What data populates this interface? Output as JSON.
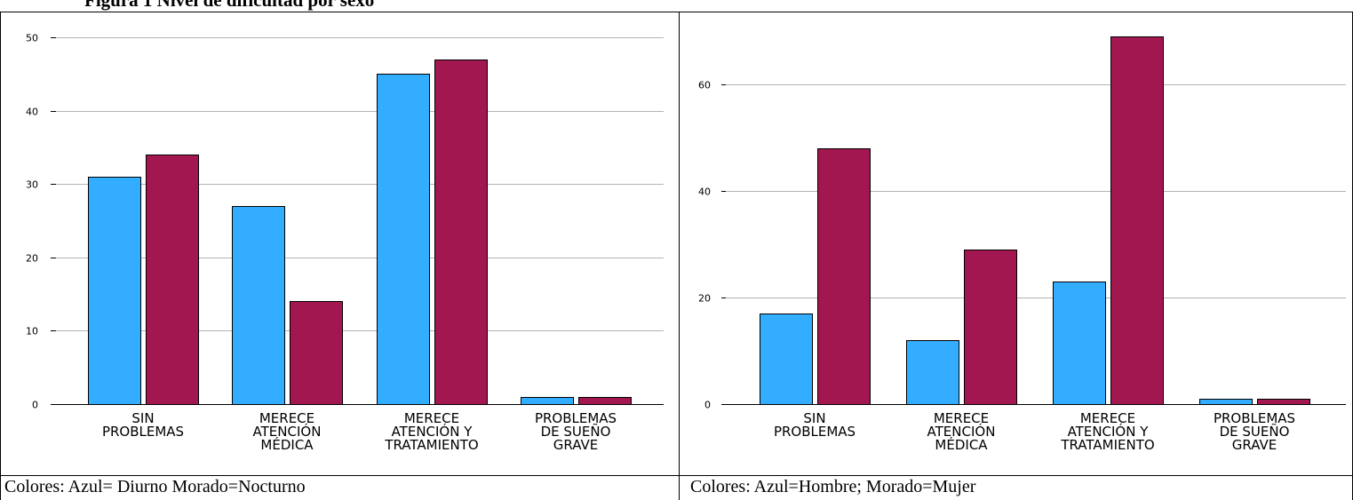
{
  "figure_title": "Figura 1 Nivel de dificultad por sexo",
  "colors": {
    "series_1": "#33adff",
    "series_2": "#a2174f"
  },
  "chart_data": [
    {
      "type": "bar",
      "categories": [
        [
          "SIN",
          "PROBLEMAS"
        ],
        [
          "MERECE",
          "ATENCIÓN",
          "MÉDICA"
        ],
        [
          "MERECE",
          "ATENCIÓN Y",
          "TRATAMIENTO"
        ],
        [
          "PROBLEMAS",
          "DE SUEÑO",
          "GRAVE"
        ]
      ],
      "series": [
        {
          "values": [
            31,
            27,
            45,
            1
          ]
        },
        {
          "values": [
            34,
            14,
            47,
            1
          ]
        }
      ],
      "ylim": [
        0,
        50
      ],
      "yticks": [
        0,
        10,
        20,
        30,
        40,
        50
      ],
      "grid": true,
      "caption": "Colores: Azul= Diurno Morado=Nocturno"
    },
    {
      "type": "bar",
      "categories": [
        [
          "SIN",
          "PROBLEMAS"
        ],
        [
          "MERECE",
          "ATENCIÓN",
          "MÉDICA"
        ],
        [
          "MERECE",
          "ATENCIÓN Y",
          "TRATAMIENTO"
        ],
        [
          "PROBLEMAS",
          "DE SUEÑO",
          "GRAVE"
        ]
      ],
      "series": [
        {
          "values": [
            17,
            12,
            23,
            1
          ]
        },
        {
          "values": [
            48,
            29,
            69,
            1
          ]
        }
      ],
      "ylim": [
        0,
        69
      ],
      "yticks": [
        0,
        20,
        40,
        60
      ],
      "grid": true,
      "caption": "Colores: Azul=Hombre; Morado=Mujer"
    }
  ]
}
